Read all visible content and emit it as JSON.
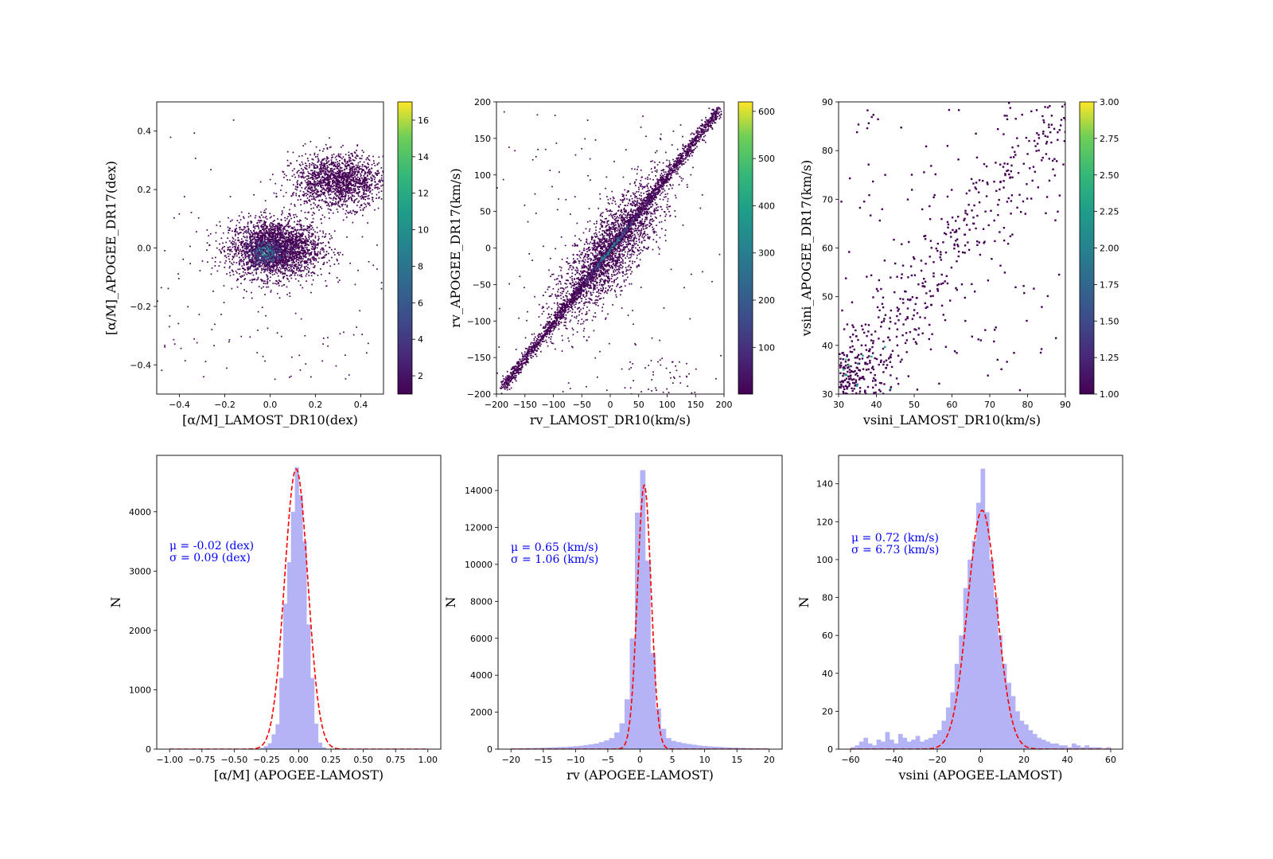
{
  "chart_data": [
    {
      "type": "heatmap",
      "xlabel": "[α/M]_LAMOST_DR10(dex)",
      "ylabel": "[α/M]_APOGEE_DR17(dex)",
      "xlim": [
        -0.5,
        0.5
      ],
      "ylim": [
        -0.5,
        0.5
      ],
      "xticks": [
        "−0.4",
        "−0.2",
        "0.0",
        "0.2",
        "0.4"
      ],
      "xtick_values": [
        -0.4,
        -0.2,
        0.0,
        0.2,
        0.4
      ],
      "yticks": [
        "−0.4",
        "−0.2",
        "0.0",
        "0.2",
        "0.4"
      ],
      "ytick_values": [
        -0.4,
        -0.2,
        0.0,
        0.2,
        0.4
      ],
      "colorbar": {
        "min": 1,
        "max": 17,
        "ticks": [
          "2",
          "4",
          "6",
          "8",
          "10",
          "12",
          "14",
          "16"
        ],
        "tick_values": [
          2,
          4,
          6,
          8,
          10,
          12,
          14,
          16
        ]
      },
      "colormap": "viridis",
      "grid": false
    },
    {
      "type": "heatmap",
      "xlabel": "rv_LAMOST_DR10(km/s)",
      "ylabel": "rv_APOGEE_DR17(km/s)",
      "xlim": [
        -200,
        200
      ],
      "ylim": [
        -200,
        200
      ],
      "xticks": [
        "−200",
        "−150",
        "−100",
        "−50",
        "0",
        "50",
        "100",
        "150",
        "200"
      ],
      "xtick_values": [
        -200,
        -150,
        -100,
        -50,
        0,
        50,
        100,
        150,
        200
      ],
      "yticks": [
        "−200",
        "−150",
        "−100",
        "−50",
        "0",
        "50",
        "100",
        "150",
        "200"
      ],
      "ytick_values": [
        -200,
        -150,
        -100,
        -50,
        0,
        50,
        100,
        150,
        200
      ],
      "colorbar": {
        "min": 1,
        "max": 620,
        "ticks": [
          "100",
          "200",
          "300",
          "400",
          "500",
          "600"
        ],
        "tick_values": [
          100,
          200,
          300,
          400,
          500,
          600
        ]
      },
      "colormap": "viridis",
      "grid": false
    },
    {
      "type": "heatmap",
      "xlabel": "vsini_LAMOST_DR10(km/s)",
      "ylabel": "vsini_APOGEE_DR17(km/s)",
      "xlim": [
        30,
        90
      ],
      "ylim": [
        30,
        90
      ],
      "xticks": [
        "30",
        "40",
        "50",
        "60",
        "70",
        "80",
        "90"
      ],
      "xtick_values": [
        30,
        40,
        50,
        60,
        70,
        80,
        90
      ],
      "yticks": [
        "30",
        "40",
        "50",
        "60",
        "70",
        "80",
        "90"
      ],
      "ytick_values": [
        30,
        40,
        50,
        60,
        70,
        80,
        90
      ],
      "colorbar": {
        "min": 1.0,
        "max": 3.0,
        "ticks": [
          "1.00",
          "1.25",
          "1.50",
          "1.75",
          "2.00",
          "2.25",
          "2.50",
          "2.75",
          "3.00"
        ],
        "tick_values": [
          1.0,
          1.25,
          1.5,
          1.75,
          2.0,
          2.25,
          2.5,
          2.75,
          3.0
        ]
      },
      "colormap": "viridis",
      "grid": false
    },
    {
      "type": "bar",
      "xlabel": "[α/M] (APOGEE-LAMOST)",
      "ylabel": "N",
      "xlim": [
        -1.1,
        1.1
      ],
      "ylim": [
        0,
        4950
      ],
      "xticks": [
        "−1.00",
        "−0.75",
        "−0.50",
        "−0.25",
        "0.00",
        "0.25",
        "0.50",
        "0.75",
        "1.00"
      ],
      "xtick_values": [
        -1.0,
        -0.75,
        -0.5,
        -0.25,
        0.0,
        0.25,
        0.5,
        0.75,
        1.0
      ],
      "yticks": [
        "0",
        "1000",
        "2000",
        "3000",
        "4000"
      ],
      "ytick_values": [
        0,
        1000,
        2000,
        3000,
        4000
      ],
      "hist": {
        "x": [
          -0.3,
          -0.27,
          -0.24,
          -0.21,
          -0.18,
          -0.15,
          -0.12,
          -0.09,
          -0.06,
          -0.03,
          0.0,
          0.03,
          0.06,
          0.09,
          0.12,
          0.15,
          0.18
        ],
        "width": 0.03,
        "values": [
          20,
          50,
          100,
          250,
          420,
          1200,
          2450,
          3150,
          4000,
          4750,
          4280,
          3500,
          2100,
          1200,
          430,
          110,
          30
        ],
        "color": "#b3b3f5"
      },
      "fit": {
        "mu": -0.02,
        "sigma": 0.09,
        "peak": 4720,
        "color": "#ff0000",
        "style": "dashed",
        "range": [
          -1.0,
          1.0
        ]
      },
      "annotations": [
        "μ = -0.02 (dex)",
        "σ = 0.09 (dex)"
      ]
    },
    {
      "type": "bar",
      "xlabel": "rv (APOGEE-LAMOST)",
      "ylabel": "N",
      "xlim": [
        -22,
        22
      ],
      "ylim": [
        0,
        15900
      ],
      "xticks": [
        "−20",
        "−15",
        "−10",
        "−5",
        "0",
        "5",
        "10",
        "15",
        "20"
      ],
      "xtick_values": [
        -20,
        -15,
        -10,
        -5,
        0,
        5,
        10,
        15,
        20
      ],
      "yticks": [
        "0",
        "2000",
        "4000",
        "6000",
        "8000",
        "10000",
        "12000",
        "14000"
      ],
      "ytick_values": [
        0,
        2000,
        4000,
        6000,
        8000,
        10000,
        12000,
        14000
      ],
      "hist": {
        "x": [
          -20,
          -19.2,
          -18.4,
          -17.6,
          -16.8,
          -16,
          -15.2,
          -14.4,
          -13.6,
          -12.8,
          -12,
          -11.2,
          -10.4,
          -9.6,
          -8.8,
          -8,
          -7.2,
          -6.4,
          -5.6,
          -4.8,
          -4,
          -3.2,
          -2.4,
          -1.6,
          -0.8,
          0,
          0.8,
          1.6,
          2.4,
          3.2,
          4,
          4.8,
          5.6,
          6.4,
          7.2,
          8,
          8.8,
          9.6,
          10.4,
          11.2,
          12,
          12.8,
          13.6,
          14.4,
          15.2,
          16,
          16.8,
          17.6,
          18.4,
          19.2
        ],
        "width": 0.8,
        "values": [
          40,
          40,
          50,
          60,
          60,
          70,
          80,
          90,
          100,
          110,
          120,
          140,
          160,
          180,
          220,
          260,
          300,
          380,
          470,
          600,
          900,
          1400,
          2700,
          6000,
          12800,
          15100,
          10200,
          5200,
          2200,
          1100,
          600,
          450,
          380,
          320,
          280,
          240,
          200,
          170,
          150,
          130,
          120,
          100,
          90,
          80,
          70,
          60,
          55,
          50,
          45,
          40
        ],
        "color": "#b3b3f5"
      },
      "fit": {
        "mu": 0.65,
        "sigma": 1.06,
        "peak": 14300,
        "color": "#ff0000",
        "style": "dashed",
        "range": [
          -20,
          20
        ]
      },
      "annotations": [
        "μ = 0.65 (km/s)",
        "σ = 1.06 (km/s)"
      ]
    },
    {
      "type": "bar",
      "xlabel": "vsini (APOGEE-LAMOST)",
      "ylabel": "N",
      "xlim": [
        -65.5,
        65.5
      ],
      "ylim": [
        0,
        155
      ],
      "xticks": [
        "−60",
        "−40",
        "−20",
        "0",
        "20",
        "40",
        "60"
      ],
      "xtick_values": [
        -60,
        -40,
        -20,
        0,
        20,
        40,
        60
      ],
      "yticks": [
        "0",
        "20",
        "40",
        "60",
        "80",
        "100",
        "120",
        "140"
      ],
      "ytick_values": [
        0,
        20,
        40,
        60,
        80,
        100,
        120,
        140
      ],
      "hist": {
        "x": [
          -60,
          -58,
          -56,
          -54,
          -52,
          -50,
          -48,
          -46,
          -44,
          -42,
          -40,
          -38,
          -36,
          -34,
          -32,
          -30,
          -28,
          -26,
          -24,
          -22,
          -20,
          -18,
          -16,
          -14,
          -12,
          -10,
          -8,
          -6,
          -4,
          -2,
          0,
          2,
          4,
          6,
          8,
          10,
          12,
          14,
          16,
          18,
          20,
          22,
          24,
          26,
          28,
          30,
          32,
          34,
          36,
          38,
          40,
          42,
          44,
          46,
          48,
          50,
          52,
          54,
          56,
          58
        ],
        "width": 2,
        "values": [
          1,
          2,
          4,
          6,
          3,
          2,
          5,
          4,
          9,
          5,
          3,
          8,
          6,
          4,
          5,
          7,
          4,
          5,
          6,
          8,
          10,
          15,
          22,
          30,
          45,
          60,
          85,
          100,
          110,
          130,
          148,
          125,
          100,
          80,
          60,
          45,
          35,
          28,
          20,
          15,
          13,
          10,
          8,
          6,
          5,
          4,
          3,
          3,
          2,
          2,
          1,
          3,
          2,
          1,
          2,
          1,
          1,
          1,
          0,
          1
        ],
        "color": "#b3b3f5"
      },
      "fit": {
        "mu": 0.72,
        "sigma": 6.73,
        "peak": 126,
        "color": "#ff0000",
        "style": "dashed",
        "range": [
          -60,
          60
        ]
      },
      "annotations": [
        "μ = 0.72 (km/s)",
        "σ = 6.73 (km/s)"
      ]
    }
  ]
}
